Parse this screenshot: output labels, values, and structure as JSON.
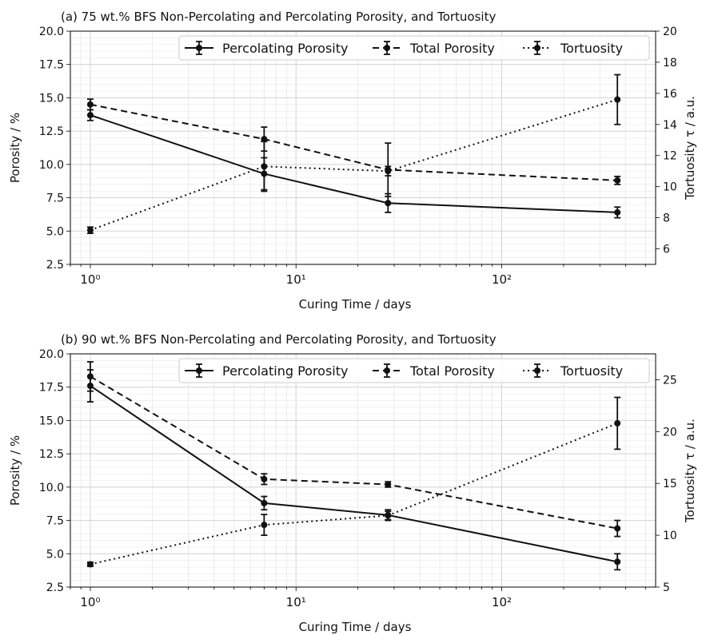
{
  "chart_data": [
    {
      "type": "line",
      "title": "(a) 75 wt.% BFS Non-Percolating and Percolating Porosity, and Tortuosity",
      "xlabel": "Curing Time / days",
      "ylabel": "Porosity / %",
      "y2label": "Tortuosity τ / a.u.",
      "xscale": "log",
      "xlim": [
        0.8,
        560
      ],
      "ylim": [
        2.5,
        20.0
      ],
      "y2lim": [
        5.0,
        20.0
      ],
      "x": [
        1,
        7,
        28,
        365
      ],
      "xticks": [
        "10⁰",
        "10¹",
        "10²"
      ],
      "yticks": [
        "2.5",
        "5.0",
        "7.5",
        "10.0",
        "12.5",
        "15.0",
        "17.5",
        "20.0"
      ],
      "y2ticks": [
        "6",
        "8",
        "10",
        "12",
        "14",
        "16",
        "18",
        "20"
      ],
      "grid": true,
      "legend": "top-right",
      "series": [
        {
          "name": "Percolating Porosity",
          "axis": "left",
          "style": "solid",
          "values": [
            13.7,
            9.3,
            7.1,
            6.4
          ],
          "errors": [
            0.4,
            1.2,
            0.7,
            0.4
          ]
        },
        {
          "name": "Total Porosity",
          "axis": "left",
          "style": "dashed",
          "values": [
            14.5,
            11.9,
            9.6,
            8.8
          ],
          "errors": [
            0.4,
            0.9,
            2.0,
            0.3
          ]
        },
        {
          "name": "Tortuosity",
          "axis": "right",
          "style": "dotted",
          "values": [
            7.2,
            11.3,
            11.0,
            15.6
          ],
          "errors": [
            0.2,
            1.6,
            0.3,
            1.6
          ]
        }
      ]
    },
    {
      "type": "line",
      "title": "(b) 90 wt.% BFS Non-Percolating and Percolating Porosity, and Tortuosity",
      "xlabel": "Curing Time / days",
      "ylabel": "Porosity / %",
      "y2label": "Tortuosity τ / a.u.",
      "xscale": "log",
      "xlim": [
        0.8,
        560
      ],
      "ylim": [
        2.5,
        20.0
      ],
      "y2lim": [
        5.0,
        27.5
      ],
      "x": [
        1,
        7,
        28,
        365
      ],
      "xticks": [
        "10⁰",
        "10¹",
        "10²"
      ],
      "yticks": [
        "2.5",
        "5.0",
        "7.5",
        "10.0",
        "12.5",
        "15.0",
        "17.5",
        "20.0"
      ],
      "y2ticks": [
        "5",
        "10",
        "15",
        "20",
        "25"
      ],
      "grid": true,
      "legend": "top-right",
      "series": [
        {
          "name": "Percolating Porosity",
          "axis": "left",
          "style": "solid",
          "values": [
            17.6,
            8.8,
            7.9,
            4.4
          ],
          "errors": [
            1.2,
            0.5,
            0.4,
            0.6
          ]
        },
        {
          "name": "Total Porosity",
          "axis": "left",
          "style": "dashed",
          "values": [
            18.3,
            10.6,
            10.2,
            6.9
          ],
          "errors": [
            1.1,
            0.4,
            0.2,
            0.6
          ]
        },
        {
          "name": "Tortuosity",
          "axis": "right",
          "style": "dotted",
          "values": [
            7.2,
            11.0,
            11.9,
            20.8
          ],
          "errors": [
            0.2,
            1.0,
            0.4,
            2.5
          ]
        }
      ]
    }
  ]
}
